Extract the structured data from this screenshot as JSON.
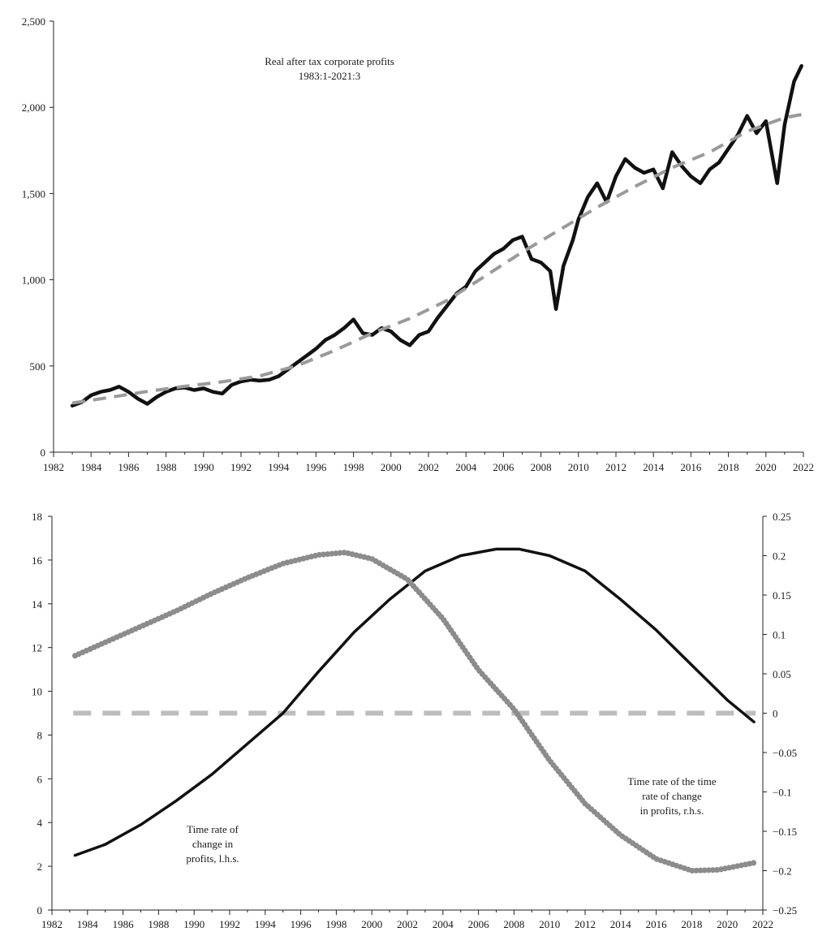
{
  "chart_data": [
    {
      "type": "line",
      "title": "Real after tax corporate profits",
      "subtitle": "1983:1-2021:3",
      "xlim": [
        1982,
        2022
      ],
      "ylim": [
        0,
        2500
      ],
      "x_ticks": [
        "1982",
        "1984",
        "1986",
        "1988",
        "1990",
        "1992",
        "1994",
        "1996",
        "1998",
        "2000",
        "2002",
        "2004",
        "2006",
        "2008",
        "2010",
        "2012",
        "2014",
        "2016",
        "2018",
        "2020",
        "2022"
      ],
      "y_ticks": [
        "0",
        "500",
        "1,000",
        "1,500",
        "2,000",
        "2,500"
      ],
      "series": [
        {
          "name": "Real after tax corporate profits",
          "style": "solid",
          "color": "#111111",
          "points": [
            [
              1983.0,
              270
            ],
            [
              1983.5,
              290
            ],
            [
              1984.0,
              330
            ],
            [
              1984.5,
              350
            ],
            [
              1985.0,
              360
            ],
            [
              1985.5,
              380
            ],
            [
              1986.0,
              350
            ],
            [
              1986.5,
              310
            ],
            [
              1987.0,
              280
            ],
            [
              1987.5,
              320
            ],
            [
              1988.0,
              350
            ],
            [
              1988.5,
              370
            ],
            [
              1989.0,
              375
            ],
            [
              1989.5,
              360
            ],
            [
              1990.0,
              370
            ],
            [
              1990.5,
              350
            ],
            [
              1991.0,
              340
            ],
            [
              1991.5,
              390
            ],
            [
              1992.0,
              410
            ],
            [
              1992.5,
              420
            ],
            [
              1993.0,
              415
            ],
            [
              1993.5,
              420
            ],
            [
              1994.0,
              440
            ],
            [
              1994.5,
              480
            ],
            [
              1995.0,
              520
            ],
            [
              1995.5,
              560
            ],
            [
              1996.0,
              600
            ],
            [
              1996.5,
              650
            ],
            [
              1997.0,
              680
            ],
            [
              1997.5,
              720
            ],
            [
              1998.0,
              770
            ],
            [
              1998.5,
              690
            ],
            [
              1999.0,
              680
            ],
            [
              1999.5,
              720
            ],
            [
              2000.0,
              700
            ],
            [
              2000.5,
              650
            ],
            [
              2001.0,
              620
            ],
            [
              2001.5,
              680
            ],
            [
              2002.0,
              700
            ],
            [
              2002.5,
              780
            ],
            [
              2003.0,
              850
            ],
            [
              2003.5,
              920
            ],
            [
              2004.0,
              960
            ],
            [
              2004.5,
              1050
            ],
            [
              2005.0,
              1100
            ],
            [
              2005.5,
              1150
            ],
            [
              2006.0,
              1180
            ],
            [
              2006.5,
              1230
            ],
            [
              2007.0,
              1250
            ],
            [
              2007.5,
              1120
            ],
            [
              2008.0,
              1100
            ],
            [
              2008.5,
              1050
            ],
            [
              2008.8,
              830
            ],
            [
              2009.2,
              1080
            ],
            [
              2009.7,
              1230
            ],
            [
              2010.0,
              1350
            ],
            [
              2010.5,
              1480
            ],
            [
              2011.0,
              1560
            ],
            [
              2011.5,
              1450
            ],
            [
              2012.0,
              1600
            ],
            [
              2012.5,
              1700
            ],
            [
              2013.0,
              1650
            ],
            [
              2013.5,
              1620
            ],
            [
              2014.0,
              1640
            ],
            [
              2014.5,
              1530
            ],
            [
              2015.0,
              1740
            ],
            [
              2015.5,
              1660
            ],
            [
              2016.0,
              1600
            ],
            [
              2016.5,
              1560
            ],
            [
              2017.0,
              1640
            ],
            [
              2017.5,
              1680
            ],
            [
              2018.0,
              1760
            ],
            [
              2018.5,
              1840
            ],
            [
              2019.0,
              1950
            ],
            [
              2019.5,
              1850
            ],
            [
              2020.0,
              1920
            ],
            [
              2020.3,
              1740
            ],
            [
              2020.6,
              1560
            ],
            [
              2021.0,
              1900
            ],
            [
              2021.5,
              2150
            ],
            [
              2021.9,
              2240
            ]
          ]
        },
        {
          "name": "Trend",
          "style": "dashed",
          "color": "#9a9a9a",
          "points": [
            [
              1983,
              285
            ],
            [
              1985,
              318
            ],
            [
              1987,
              352
            ],
            [
              1989,
              382
            ],
            [
              1991,
              408
            ],
            [
              1993,
              442
            ],
            [
              1995,
              502
            ],
            [
              1997,
              590
            ],
            [
              1999,
              690
            ],
            [
              2001,
              775
            ],
            [
              2003,
              880
            ],
            [
              2005,
              1020
            ],
            [
              2007,
              1160
            ],
            [
              2009,
              1290
            ],
            [
              2011,
              1420
            ],
            [
              2013,
              1540
            ],
            [
              2015,
              1650
            ],
            [
              2017,
              1740
            ],
            [
              2019,
              1860
            ],
            [
              2021,
              1940
            ],
            [
              2022,
              1960
            ]
          ]
        }
      ]
    },
    {
      "type": "line",
      "xlim": [
        1982,
        2022
      ],
      "ylim_left": [
        0,
        18
      ],
      "ylim_right": [
        -0.25,
        0.25
      ],
      "x_ticks": [
        "1982",
        "1984",
        "1986",
        "1988",
        "1990",
        "1992",
        "1994",
        "1996",
        "1998",
        "2000",
        "2002",
        "2004",
        "2006",
        "2008",
        "2010",
        "2012",
        "2014",
        "2016",
        "2018",
        "2020",
        "2022"
      ],
      "y_left_ticks": [
        "0",
        "2",
        "4",
        "6",
        "8",
        "10",
        "12",
        "14",
        "16",
        "18"
      ],
      "y_right_ticks": [
        "−0.25",
        "−0.2",
        "−0.15",
        "−0.1",
        "−0.05",
        "0",
        "0.05",
        "0.1",
        "0.15",
        "0.2",
        "0.25"
      ],
      "annotation_left": [
        "Time rate of",
        "change in",
        "profits, l.h.s."
      ],
      "annotation_right": [
        "Time rate of the time",
        "rate of change",
        "in profits, r.h.s."
      ],
      "series": [
        {
          "name": "Time rate of change in profits, l.h.s.",
          "axis": "left",
          "style": "solid",
          "color": "#111111",
          "points": [
            [
              1983.3,
              2.5
            ],
            [
              1985,
              3.0
            ],
            [
              1987,
              3.9
            ],
            [
              1989,
              5.0
            ],
            [
              1991,
              6.2
            ],
            [
              1993,
              7.6
            ],
            [
              1995,
              9.0
            ],
            [
              1997,
              10.9
            ],
            [
              1999,
              12.7
            ],
            [
              2001,
              14.2
            ],
            [
              2003,
              15.5
            ],
            [
              2005,
              16.2
            ],
            [
              2007,
              16.5
            ],
            [
              2008.3,
              16.5
            ],
            [
              2010,
              16.2
            ],
            [
              2012,
              15.5
            ],
            [
              2014,
              14.2
            ],
            [
              2016,
              12.8
            ],
            [
              2018,
              11.2
            ],
            [
              2020,
              9.6
            ],
            [
              2021.5,
              8.6
            ]
          ]
        },
        {
          "name": "Time rate of the time rate of change in profits, r.h.s.",
          "axis": "right",
          "style": "dotted",
          "color": "#8c8c8c",
          "points": [
            [
              1983.3,
              0.073
            ],
            [
              1985,
              0.09
            ],
            [
              1987,
              0.11
            ],
            [
              1989,
              0.13
            ],
            [
              1991,
              0.152
            ],
            [
              1993,
              0.172
            ],
            [
              1995,
              0.19
            ],
            [
              1997,
              0.201
            ],
            [
              1998.5,
              0.204
            ],
            [
              2000,
              0.196
            ],
            [
              2002,
              0.17
            ],
            [
              2004,
              0.12
            ],
            [
              2006,
              0.055
            ],
            [
              2008,
              0.005
            ],
            [
              2010,
              -0.06
            ],
            [
              2012,
              -0.115
            ],
            [
              2014,
              -0.155
            ],
            [
              2016,
              -0.185
            ],
            [
              2018,
              -0.2
            ],
            [
              2019.5,
              -0.199
            ],
            [
              2021.5,
              -0.19
            ]
          ]
        },
        {
          "name": "Zero line",
          "axis": "right",
          "style": "dashed",
          "color": "#bdbdbd",
          "points": [
            [
              1983.2,
              0
            ],
            [
              2021.6,
              0
            ]
          ]
        }
      ]
    }
  ]
}
